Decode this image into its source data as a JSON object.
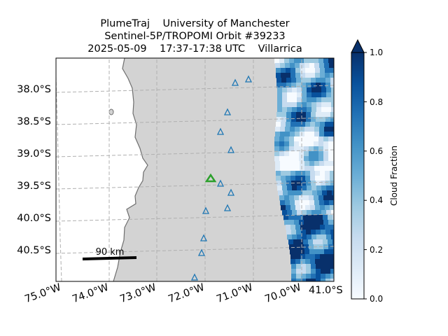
{
  "title": {
    "line1": "PlumeTraj    University of Manchester",
    "line2": "Sentinel-5P/TROPOMI Orbit #39233",
    "line3": "2025-05-09    17:37-17:38 UTC    Villarrica"
  },
  "map": {
    "lat_labels": [
      "38.0°S",
      "38.5°S",
      "39.0°S",
      "39.5°S",
      "40.0°S",
      "40.5°S"
    ],
    "lon_labels": [
      "75.0°W",
      "74.0°W",
      "73.0°W",
      "72.0°W",
      "71.0°W",
      "70.0°W"
    ],
    "corner_label": "41.0°S",
    "scale_bar_label": "90 km",
    "land_color": "#d3d3d3",
    "ocean_color": "#ffffff",
    "gridline_color": "#b0b0b0",
    "volcano": {
      "name": "Villarrica",
      "marker": "green-triangle",
      "color": "#2ca02c",
      "lon": -71.93,
      "lat": -39.42
    },
    "stations": {
      "marker": "blue-open-triangle",
      "color": "#1f77b4",
      "count": 13
    }
  },
  "colorbar": {
    "label": "Cloud Fraction",
    "colormap": "Blues",
    "ticks": [
      "0.0",
      "0.2",
      "0.4",
      "0.6",
      "0.8",
      "1.0"
    ],
    "range": [
      0.0,
      1.0
    ],
    "extend": "max"
  }
}
